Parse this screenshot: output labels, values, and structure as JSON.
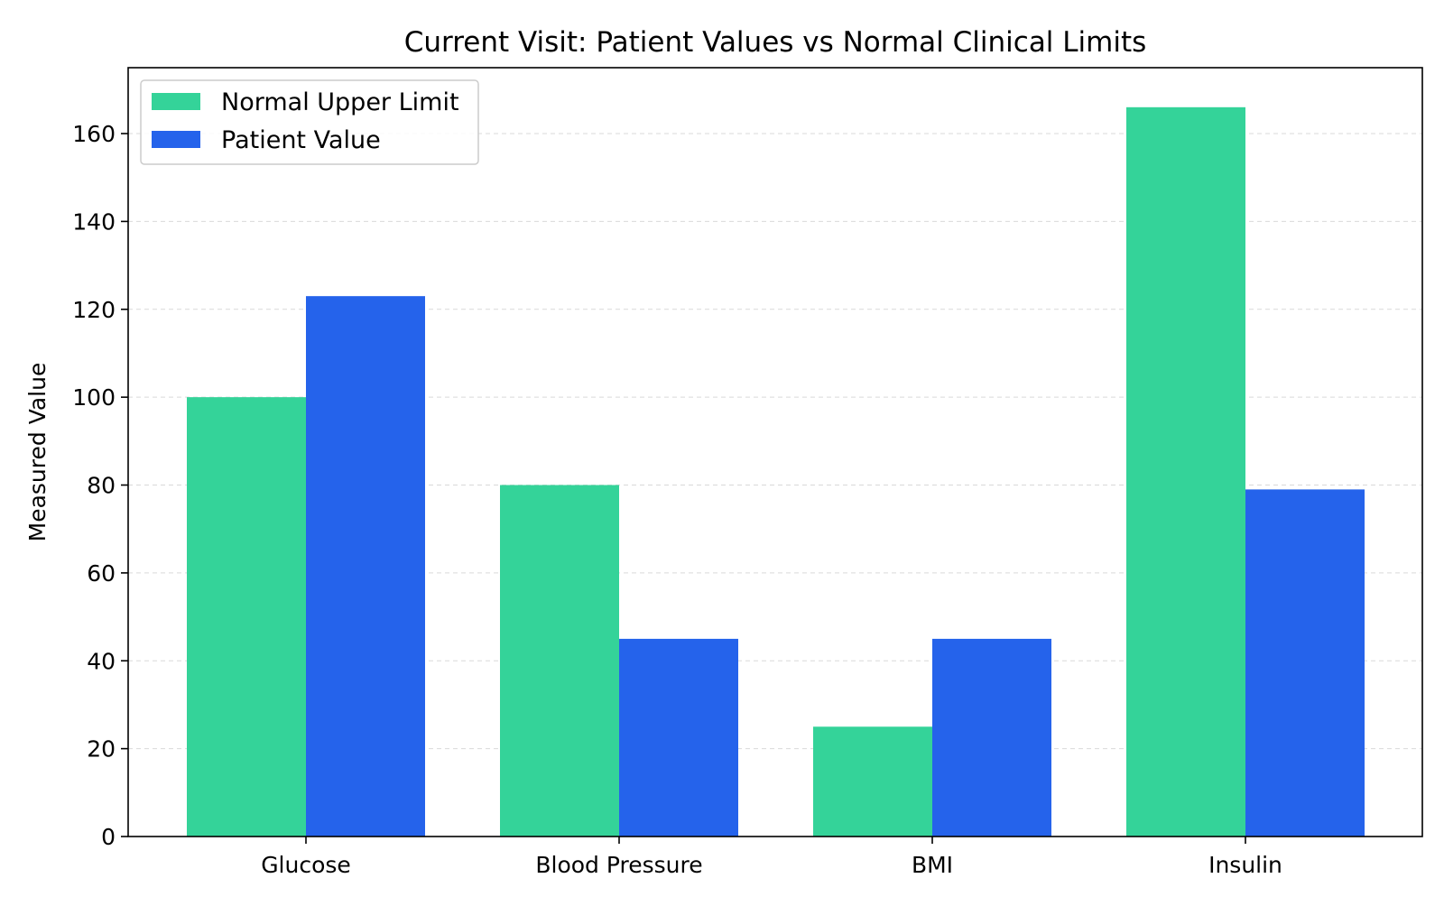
{
  "chart_data": {
    "type": "bar",
    "title": "Current Visit: Patient Values vs Normal Clinical Limits",
    "xlabel": "",
    "ylabel": "Measured Value",
    "categories": [
      "Glucose",
      "Blood Pressure",
      "BMI",
      "Insulin"
    ],
    "series": [
      {
        "name": "Normal Upper Limit",
        "color": "#34d399",
        "values": [
          100,
          80,
          25,
          166
        ]
      },
      {
        "name": "Patient Value",
        "color": "#2563eb",
        "values": [
          123,
          45,
          45,
          79
        ]
      }
    ],
    "ylim": [
      0,
      175
    ],
    "yticks": [
      0,
      20,
      40,
      60,
      80,
      100,
      120,
      140,
      160
    ],
    "grid": true,
    "legend": "top-left"
  }
}
